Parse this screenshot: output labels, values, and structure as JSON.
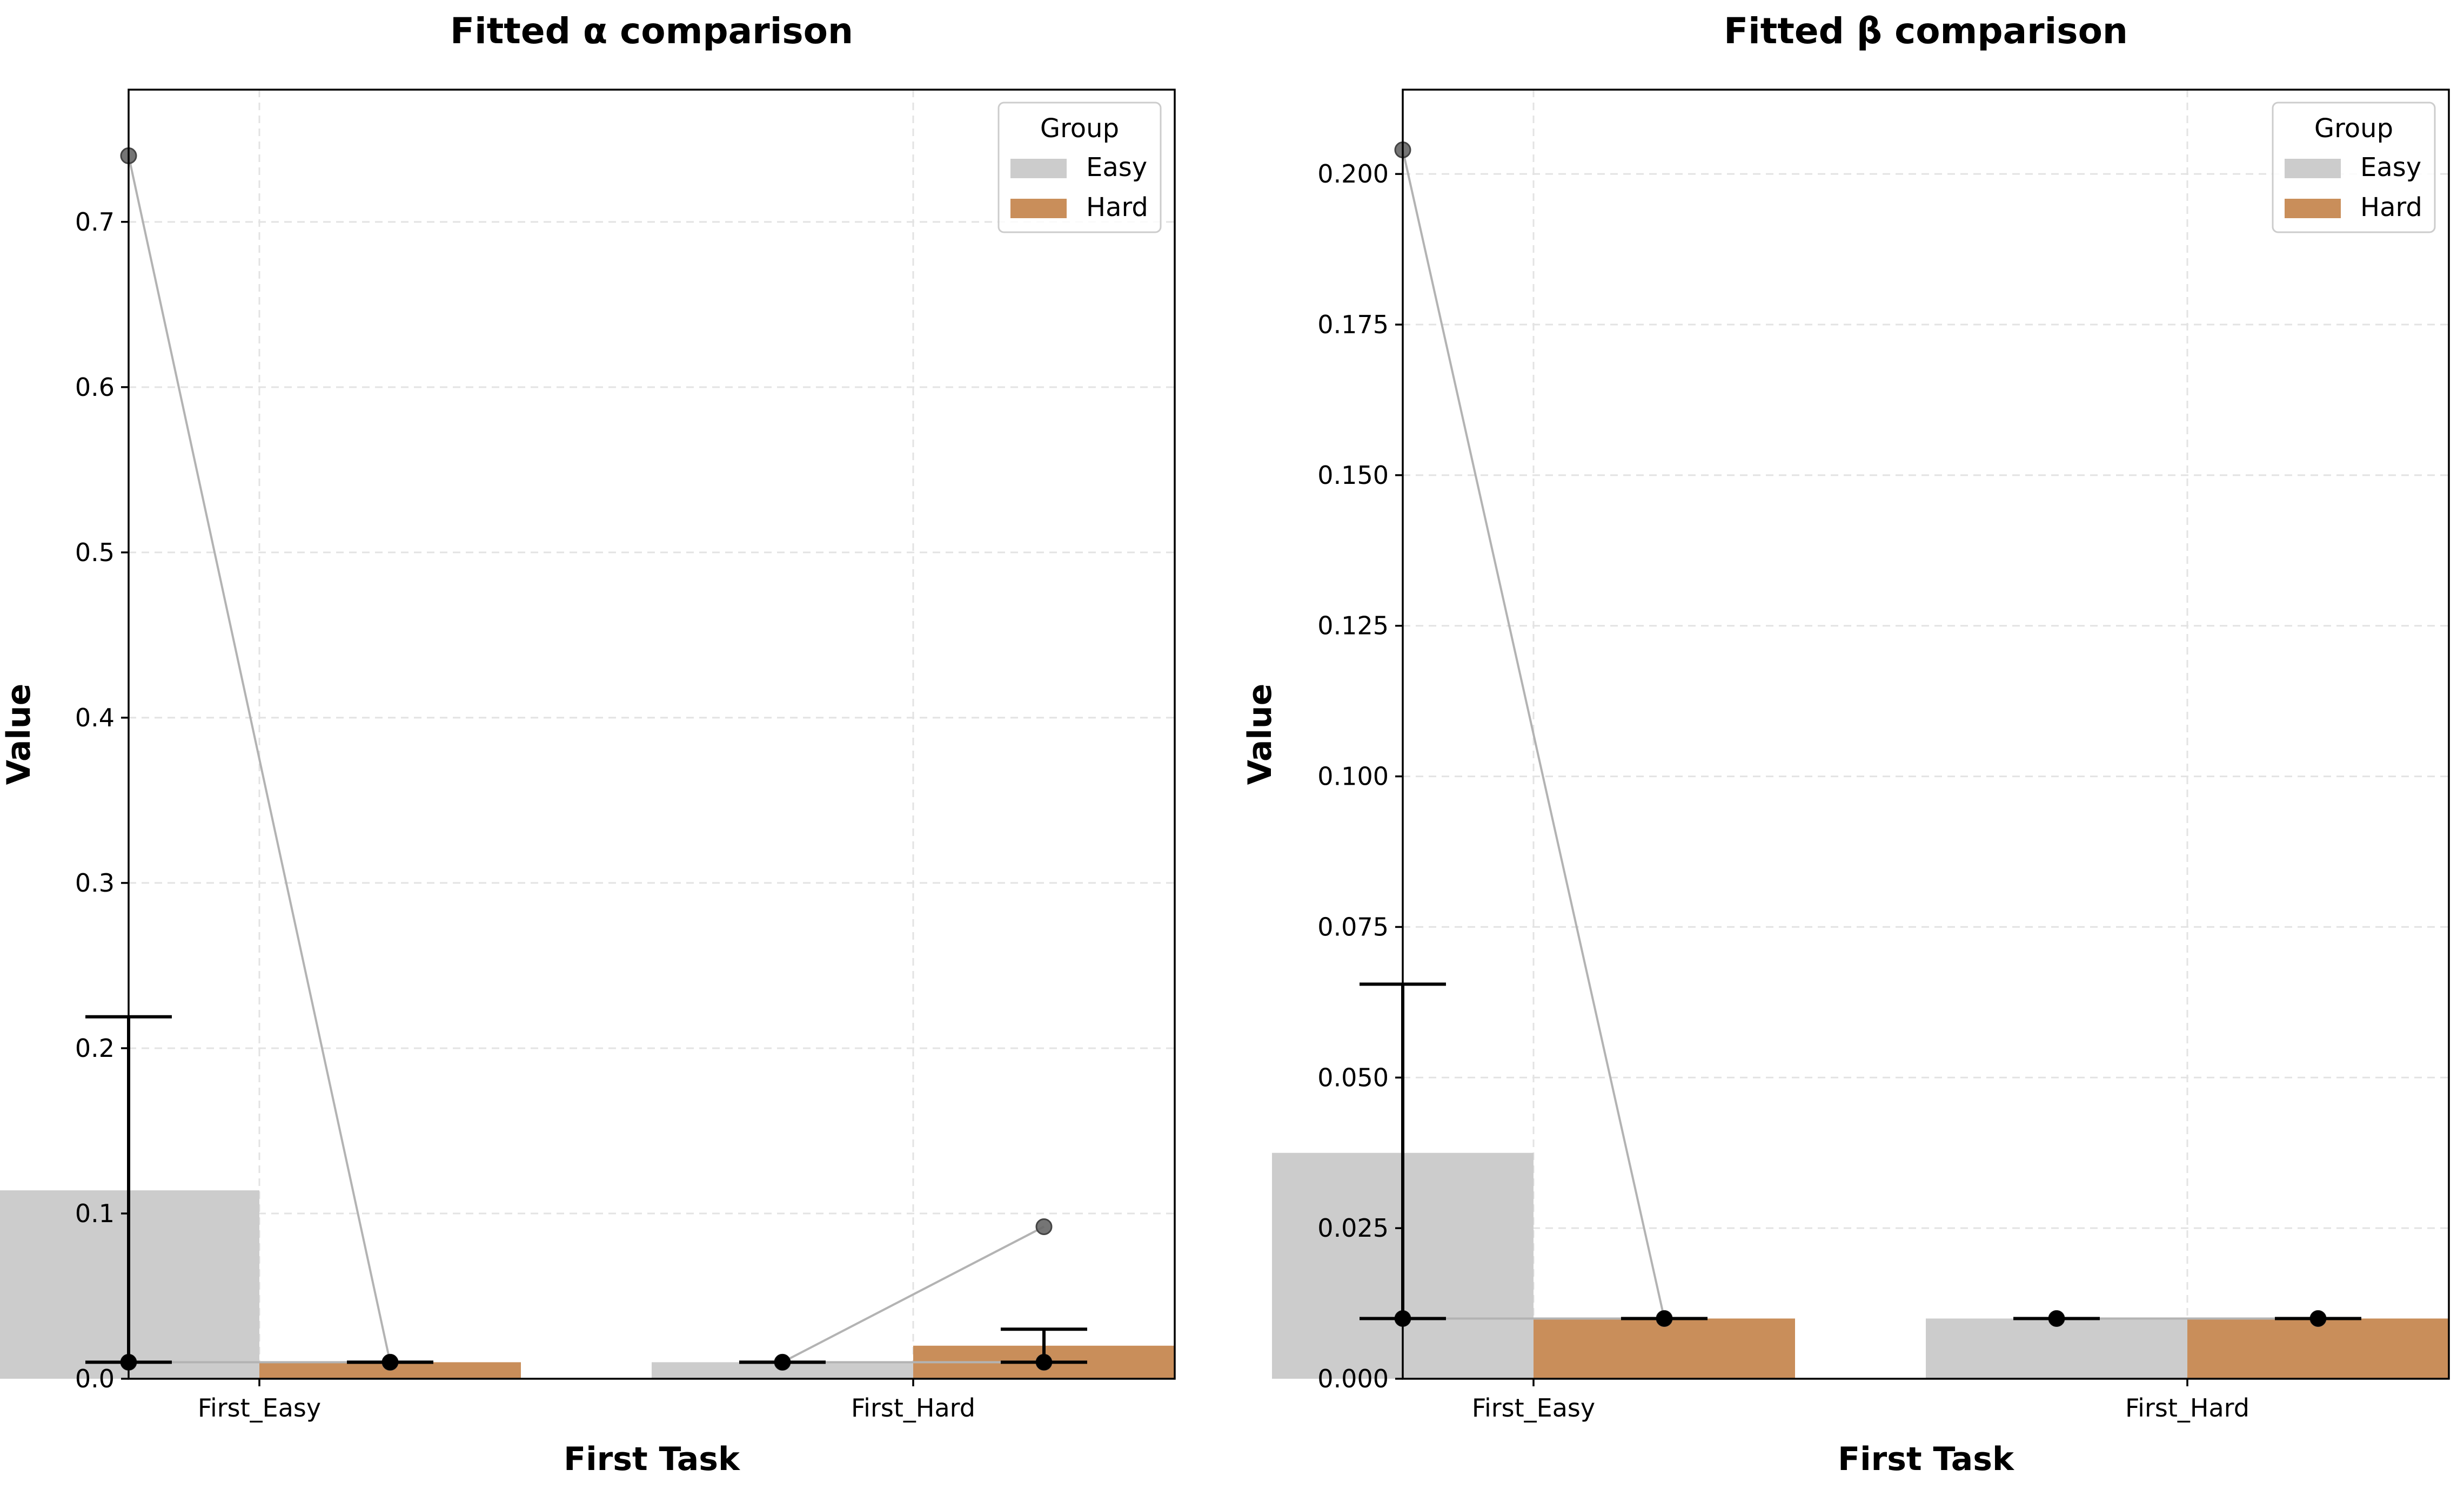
{
  "chart_data": [
    {
      "type": "bar",
      "title": "Fitted α comparison",
      "xlabel": "First Task",
      "ylabel": "Value",
      "categories": [
        "First_Easy",
        "First_Hard"
      ],
      "ylim": [
        0,
        0.78
      ],
      "yticks": [
        0.0,
        0.1,
        0.2,
        0.3,
        0.4,
        0.5,
        0.6,
        0.7
      ],
      "ytick_labels": [
        "0.0",
        "0.1",
        "0.2",
        "0.3",
        "0.4",
        "0.5",
        "0.6",
        "0.7"
      ],
      "grid": true,
      "legend": {
        "title": "Group",
        "placement": "top-right"
      },
      "series": [
        {
          "name": "Easy",
          "color": "#cccccc",
          "values": [
            0.114,
            0.01
          ],
          "error_upper": [
            0.219,
            0.01
          ],
          "error_lower": [
            0.01,
            0.01
          ]
        },
        {
          "name": "Hard",
          "color": "#c98e5a",
          "values": [
            0.01,
            0.02
          ],
          "error_upper": [
            0.01,
            0.03
          ],
          "error_lower": [
            0.01,
            0.01
          ]
        }
      ],
      "points": [
        {
          "category": "First_Easy",
          "Easy": 0.74,
          "Hard": 0.01
        },
        {
          "category": "First_Easy",
          "Easy": 0.01,
          "Hard": 0.01
        },
        {
          "category": "First_Hard",
          "Easy": 0.01,
          "Hard": 0.092
        },
        {
          "category": "First_Hard",
          "Easy": 0.01,
          "Hard": 0.01
        }
      ]
    },
    {
      "type": "bar",
      "title": "Fitted β comparison",
      "xlabel": "First Task",
      "ylabel": "Value",
      "categories": [
        "First_Easy",
        "First_Hard"
      ],
      "ylim": [
        0,
        0.214
      ],
      "yticks": [
        0.0,
        0.025,
        0.05,
        0.075,
        0.1,
        0.125,
        0.15,
        0.175,
        0.2
      ],
      "ytick_labels": [
        "0.000",
        "0.025",
        "0.050",
        "0.075",
        "0.100",
        "0.125",
        "0.150",
        "0.175",
        "0.200"
      ],
      "grid": true,
      "legend": {
        "title": "Group",
        "placement": "top-right"
      },
      "series": [
        {
          "name": "Easy",
          "color": "#cccccc",
          "values": [
            0.0375,
            0.01
          ],
          "error_upper": [
            0.0655,
            0.01
          ],
          "error_lower": [
            0.01,
            0.01
          ]
        },
        {
          "name": "Hard",
          "color": "#c98e5a",
          "values": [
            0.01,
            0.01
          ],
          "error_upper": [
            0.01,
            0.01
          ],
          "error_lower": [
            0.01,
            0.01
          ]
        }
      ],
      "points": [
        {
          "category": "First_Easy",
          "Easy": 0.204,
          "Hard": 0.01
        },
        {
          "category": "First_Easy",
          "Easy": 0.01,
          "Hard": 0.01
        },
        {
          "category": "First_Hard",
          "Easy": 0.01,
          "Hard": 0.01
        },
        {
          "category": "First_Hard",
          "Easy": 0.01,
          "Hard": 0.01
        }
      ]
    }
  ]
}
